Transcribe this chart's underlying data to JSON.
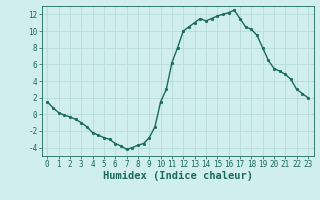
{
  "x_values": [
    0,
    0.5,
    1,
    1.5,
    2,
    2.5,
    3,
    3.5,
    4,
    4.5,
    5,
    5.5,
    6,
    6.5,
    7,
    7.5,
    8,
    8.5,
    9,
    9.5,
    10,
    10.5,
    11,
    11.5,
    12,
    12.5,
    13,
    13.5,
    14,
    14.5,
    15,
    15.5,
    16,
    16.5,
    17,
    17.5,
    18,
    18.5,
    19,
    19.5,
    20,
    20.5,
    21,
    21.5,
    22,
    22.5,
    23
  ],
  "y_values": [
    1.5,
    0.8,
    0.2,
    -0.1,
    -0.3,
    -0.6,
    -1.0,
    -1.5,
    -2.2,
    -2.5,
    -2.8,
    -3.0,
    -3.5,
    -3.8,
    -4.2,
    -4.0,
    -3.7,
    -3.5,
    -2.8,
    -1.5,
    1.5,
    3.0,
    6.2,
    8.0,
    10.0,
    10.5,
    11.0,
    11.5,
    11.2,
    11.5,
    11.8,
    12.0,
    12.2,
    12.5,
    11.5,
    10.5,
    10.2,
    9.5,
    8.0,
    6.5,
    5.5,
    5.2,
    4.8,
    4.2,
    3.0,
    2.5,
    2.0
  ],
  "line_color": "#1a6b5a",
  "marker_color": "#1a6b5a",
  "bg_color": "#d0eeee",
  "grid_color": "#b8dada",
  "xlabel": "Humidex (Indice chaleur)",
  "xlim": [
    -0.5,
    23.5
  ],
  "ylim": [
    -5,
    13
  ],
  "xticks": [
    0,
    1,
    2,
    3,
    4,
    5,
    6,
    7,
    8,
    9,
    10,
    11,
    12,
    13,
    14,
    15,
    16,
    17,
    18,
    19,
    20,
    21,
    22,
    23
  ],
  "yticks": [
    -4,
    -2,
    0,
    2,
    4,
    6,
    8,
    10,
    12
  ],
  "tick_fontsize": 5.5,
  "xlabel_fontsize": 7.5,
  "line_width": 1.0,
  "marker_size": 2.0
}
